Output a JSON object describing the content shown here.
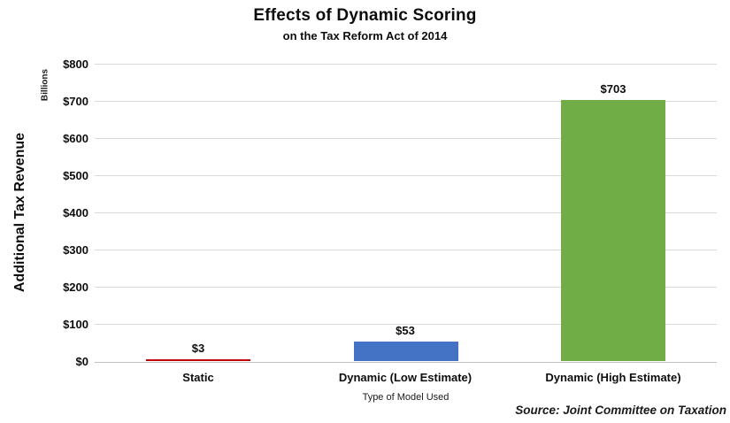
{
  "title": "Effects of Dynamic Scoring",
  "subtitle": "on the Tax Reform Act of 2014",
  "y_axis": {
    "title": "Additional Tax Revenue",
    "units": "Billions"
  },
  "x_axis": {
    "title": "Type of Model Used"
  },
  "source": "Source: Joint Committee on Taxation",
  "chart_data": {
    "type": "bar",
    "title": "Effects of Dynamic Scoring",
    "subtitle": "on the Tax Reform Act of 2014",
    "categories": [
      "Static",
      "Dynamic (Low Estimate)",
      "Dynamic (High Estimate)"
    ],
    "values": [
      3,
      53,
      703
    ],
    "data_labels": [
      "$3",
      "$53",
      "$703"
    ],
    "bar_colors": [
      "#C00000",
      "#4472C4",
      "#70AD47"
    ],
    "xlabel": "Type of Model Used",
    "ylabel": "Additional Tax Revenue",
    "y_units": "Billions",
    "ylim": [
      0,
      800
    ],
    "ytick_step": 100,
    "ytick_labels": [
      "$0",
      "$100",
      "$200",
      "$300",
      "$400",
      "$500",
      "$600",
      "$700",
      "$800"
    ],
    "grid": true,
    "gridline_color": "#D9D9D9",
    "axis_line_color": "#BFBFBF",
    "legend": "none",
    "annotation": "Source: Joint Committee on Taxation"
  }
}
